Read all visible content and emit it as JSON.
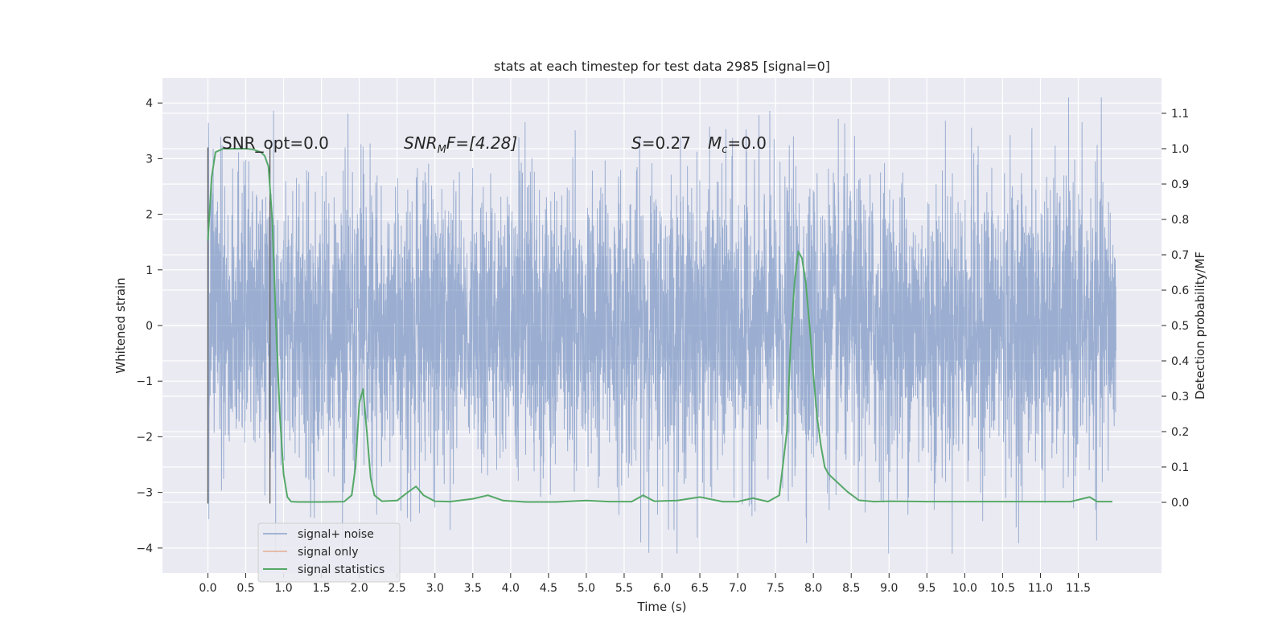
{
  "chart_data": {
    "type": "line",
    "title": "stats at each timestep for test data 2985 [signal=0]",
    "xlabel": "Time (s)",
    "ylabel_left": "Whitened strain",
    "ylabel_right": "Detection probability/MF",
    "xlim": [
      -0.6,
      12.6
    ],
    "ylim_left": [
      -4.45,
      4.45
    ],
    "ylim_right": [
      -0.2,
      1.2
    ],
    "x_ticks": [
      0.0,
      0.5,
      1.0,
      1.5,
      2.0,
      2.5,
      3.0,
      3.5,
      4.0,
      4.5,
      5.0,
      5.5,
      6.0,
      6.5,
      7.0,
      7.5,
      8.0,
      8.5,
      9.0,
      9.5,
      10.0,
      10.5,
      11.0,
      11.5
    ],
    "x_tick_labels": [
      "0.0",
      "0.5",
      "1.0",
      "1.5",
      "2.0",
      "2.5",
      "3.0",
      "3.5",
      "4.0",
      "4.5",
      "5.0",
      "5.5",
      "6.0",
      "6.5",
      "7.0",
      "7.5",
      "8.0",
      "8.5",
      "9.0",
      "9.5",
      "10.0",
      "10.5",
      "11.0",
      "11.5"
    ],
    "y_left_ticks": [
      -4,
      -3,
      -2,
      -1,
      0,
      1,
      2,
      3,
      4
    ],
    "y_left_tick_labels": [
      "−4",
      "−3",
      "−2",
      "−1",
      "0",
      "1",
      "2",
      "3",
      "4"
    ],
    "y_right_ticks": [
      0.0,
      0.1,
      0.2,
      0.3,
      0.4,
      0.5,
      0.6,
      0.7,
      0.8,
      0.9,
      1.0,
      1.1
    ],
    "y_right_tick_labels": [
      "0.0",
      "0.1",
      "0.2",
      "0.3",
      "0.4",
      "0.5",
      "0.6",
      "0.7",
      "0.8",
      "0.9",
      "1.0",
      "1.1"
    ],
    "grid": true,
    "legend_position": "lower-left",
    "annotations": {
      "snr_opt_label": "SNR_opt=0.0",
      "snr_mf_label": "SNR",
      "snr_mf_sub": "M",
      "snr_mf_rest": "F=[4.28]",
      "s_label": "S",
      "s_rest": "=0.27",
      "mc_label": "M",
      "mc_sub": "c",
      "mc_rest": "=0.0"
    },
    "vertical_markers": [
      {
        "x": 0.0,
        "y_range": [
          -3.2,
          3.2
        ]
      },
      {
        "x": 0.82,
        "y_range": [
          -3.2,
          3.2
        ]
      }
    ],
    "noise_series": {
      "name": "signal+ noise",
      "color": "#4c72b0",
      "x_range": [
        0.0,
        12.0
      ],
      "typical_amplitude": 1.3,
      "max_value": 4.1,
      "min_value": -4.1
    },
    "signal_series": {
      "name": "signal only",
      "color": "#dd8452",
      "values": []
    },
    "stat_series": {
      "name": "signal statistics",
      "color": "#55a868",
      "x": [
        0.0,
        0.05,
        0.1,
        0.15,
        0.2,
        0.3,
        0.4,
        0.5,
        0.6,
        0.7,
        0.75,
        0.8,
        0.85,
        0.9,
        0.95,
        1.0,
        1.05,
        1.1,
        1.2,
        1.5,
        1.8,
        1.9,
        1.95,
        2.0,
        2.05,
        2.1,
        2.15,
        2.2,
        2.3,
        2.5,
        2.65,
        2.75,
        2.85,
        3.0,
        3.2,
        3.5,
        3.7,
        3.9,
        4.2,
        4.6,
        5.0,
        5.3,
        5.6,
        5.75,
        5.9,
        6.2,
        6.5,
        6.8,
        7.0,
        7.2,
        7.4,
        7.55,
        7.65,
        7.7,
        7.75,
        7.8,
        7.85,
        7.9,
        7.95,
        8.0,
        8.05,
        8.1,
        8.15,
        8.2,
        8.3,
        8.45,
        8.6,
        8.8,
        9.0,
        9.5,
        10.0,
        10.5,
        11.0,
        11.4,
        11.55,
        11.65,
        11.75,
        11.95
      ],
      "values": [
        0.74,
        0.92,
        0.99,
        0.995,
        1.0,
        1.0,
        1.0,
        1.0,
        0.998,
        0.99,
        0.98,
        0.95,
        0.8,
        0.5,
        0.25,
        0.08,
        0.015,
        0.002,
        0.001,
        0.001,
        0.002,
        0.02,
        0.1,
        0.28,
        0.32,
        0.2,
        0.07,
        0.02,
        0.003,
        0.005,
        0.03,
        0.045,
        0.02,
        0.003,
        0.002,
        0.01,
        0.02,
        0.005,
        0.001,
        0.001,
        0.005,
        0.002,
        0.002,
        0.02,
        0.003,
        0.005,
        0.015,
        0.002,
        0.002,
        0.012,
        0.002,
        0.02,
        0.2,
        0.45,
        0.62,
        0.71,
        0.69,
        0.62,
        0.5,
        0.36,
        0.24,
        0.16,
        0.1,
        0.08,
        0.06,
        0.03,
        0.006,
        0.002,
        0.003,
        0.002,
        0.002,
        0.002,
        0.002,
        0.002,
        0.01,
        0.015,
        0.002,
        0.002
      ]
    }
  }
}
